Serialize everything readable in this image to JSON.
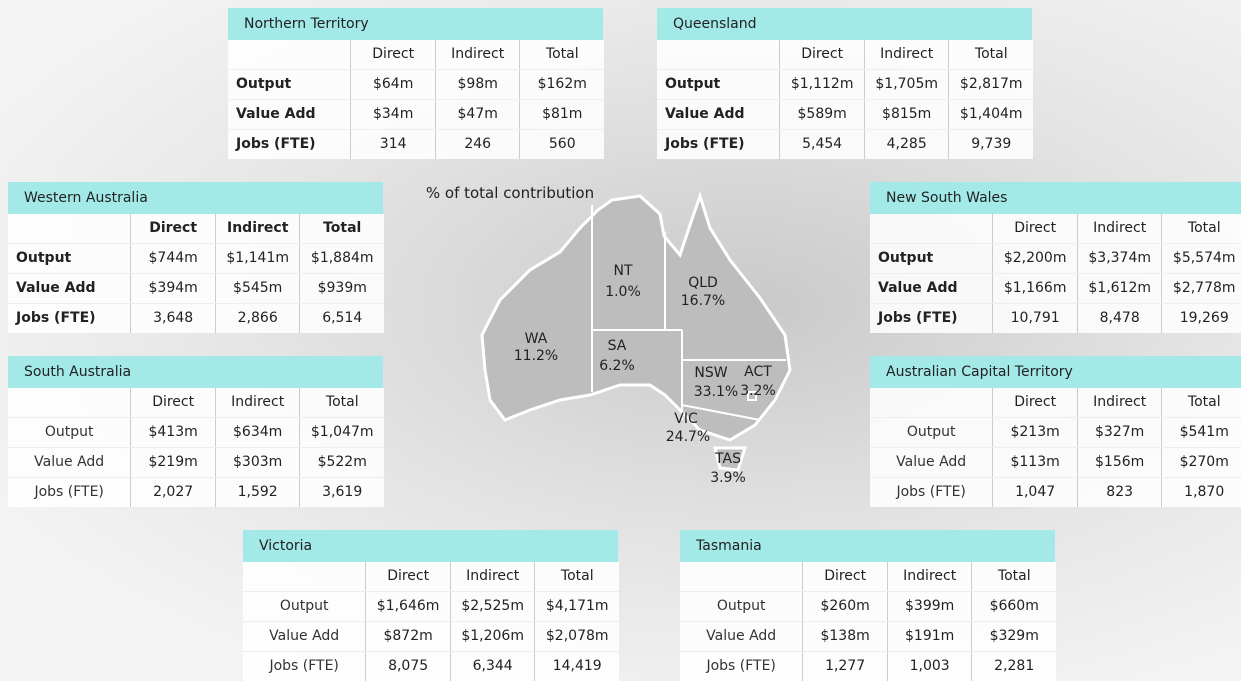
{
  "map": {
    "title": "% of total contribution",
    "regions": [
      {
        "name": "NT",
        "share": "1.0%"
      },
      {
        "name": "QLD",
        "share": "16.7%"
      },
      {
        "name": "WA",
        "share": "11.2%"
      },
      {
        "name": "SA",
        "share": "6.2%"
      },
      {
        "name": "NSW",
        "share": "33.1%"
      },
      {
        "name": "ACT",
        "share": "3.2%"
      },
      {
        "name": "VIC",
        "share": "24.7%"
      },
      {
        "name": "TAS",
        "share": "3.9%"
      }
    ]
  },
  "tables": [
    {
      "title": "Northern Territory",
      "columns": [
        "Direct",
        "Indirect",
        "Total"
      ],
      "rows": [
        {
          "label": "Output",
          "cells": [
            "$64m",
            "$98m",
            "$162m"
          ]
        },
        {
          "label": "Value Add",
          "cells": [
            "$34m",
            "$47m",
            "$81m"
          ]
        },
        {
          "label": "Jobs (FTE)",
          "cells": [
            "314",
            "246",
            "560"
          ]
        }
      ]
    },
    {
      "title": "Queensland",
      "columns": [
        "Direct",
        "Indirect",
        "Total"
      ],
      "rows": [
        {
          "label": "Output",
          "cells": [
            "$1,112m",
            "$1,705m",
            "$2,817m"
          ]
        },
        {
          "label": "Value Add",
          "cells": [
            "$589m",
            "$815m",
            "$1,404m"
          ]
        },
        {
          "label": "Jobs (FTE)",
          "cells": [
            "5,454",
            "4,285",
            "9,739"
          ]
        }
      ]
    },
    {
      "title": "Western Australia",
      "columns": [
        "Direct",
        "Indirect",
        "Total"
      ],
      "rows": [
        {
          "label": "Output",
          "cells": [
            "$744m",
            "$1,141m",
            "$1,884m"
          ]
        },
        {
          "label": "Value Add",
          "cells": [
            "$394m",
            "$545m",
            "$939m"
          ]
        },
        {
          "label": "Jobs (FTE)",
          "cells": [
            "3,648",
            "2,866",
            "6,514"
          ]
        }
      ]
    },
    {
      "title": "South Australia",
      "columns": [
        "Direct",
        "Indirect",
        "Total"
      ],
      "rows": [
        {
          "label": "Output",
          "cells": [
            "$413m",
            "$634m",
            "$1,047m"
          ]
        },
        {
          "label": "Value Add",
          "cells": [
            "$219m",
            "$303m",
            "$522m"
          ]
        },
        {
          "label": "Jobs (FTE)",
          "cells": [
            "2,027",
            "1,592",
            "3,619"
          ]
        }
      ]
    },
    {
      "title": "New South Wales",
      "columns": [
        "Direct",
        "Indirect",
        "Total"
      ],
      "rows": [
        {
          "label": "Output",
          "cells": [
            "$2,200m",
            "$3,374m",
            "$5,574m"
          ]
        },
        {
          "label": "Value Add",
          "cells": [
            "$1,166m",
            "$1,612m",
            "$2,778m"
          ]
        },
        {
          "label": "Jobs (FTE)",
          "cells": [
            "10,791",
            "8,478",
            "19,269"
          ]
        }
      ]
    },
    {
      "title": "Australian Capital Territory",
      "columns": [
        "Direct",
        "Indirect",
        "Total"
      ],
      "rows": [
        {
          "label": "Output",
          "cells": [
            "$213m",
            "$327m",
            "$541m"
          ]
        },
        {
          "label": "Value Add",
          "cells": [
            "$113m",
            "$156m",
            "$270m"
          ]
        },
        {
          "label": "Jobs (FTE)",
          "cells": [
            "1,047",
            "823",
            "1,870"
          ]
        }
      ]
    },
    {
      "title": "Victoria",
      "columns": [
        "Direct",
        "Indirect",
        "Total"
      ],
      "rows": [
        {
          "label": "Output",
          "cells": [
            "$1,646m",
            "$2,525m",
            "$4,171m"
          ]
        },
        {
          "label": "Value Add",
          "cells": [
            "$872m",
            "$1,206m",
            "$2,078m"
          ]
        },
        {
          "label": "Jobs (FTE)",
          "cells": [
            "8,075",
            "6,344",
            "14,419"
          ]
        }
      ]
    },
    {
      "title": "Tasmania",
      "columns": [
        "Direct",
        "Indirect",
        "Total"
      ],
      "rows": [
        {
          "label": "Output",
          "cells": [
            "$260m",
            "$399m",
            "$660m"
          ]
        },
        {
          "label": "Value Add",
          "cells": [
            "$138m",
            "$191m",
            "$329m"
          ]
        },
        {
          "label": "Jobs (FTE)",
          "cells": [
            "1,277",
            "1,003",
            "2,281"
          ]
        }
      ]
    }
  ]
}
